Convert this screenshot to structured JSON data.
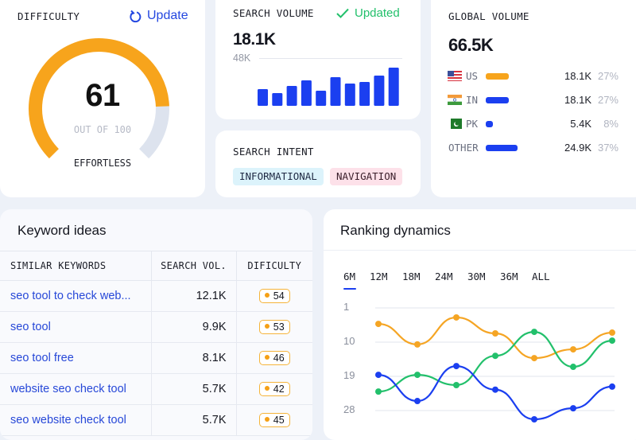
{
  "difficulty": {
    "title": "DIFFICULTY",
    "update_label": "Update",
    "value": "61",
    "max_label": "OUT OF 100",
    "level": "EFFORTLESS",
    "fraction": 0.61,
    "colors": {
      "fill": "#f7a41c",
      "track": "#dde3ee"
    }
  },
  "search_volume": {
    "title": "SEARCH VOLUME",
    "status": "Updated",
    "value": "18.1K",
    "scale_label": "48K",
    "bars": [
      16.8,
      12.8,
      20,
      25.6,
      15.2,
      28.8,
      22.4,
      24,
      30.4,
      38.4
    ],
    "scale_max": 48,
    "color": "#1b3ff0"
  },
  "search_intent": {
    "title": "SEARCH INTENT",
    "tags": [
      "INFORMATIONAL",
      "NAVIGATION"
    ]
  },
  "global_volume": {
    "title": "GLOBAL VOLUME",
    "value": "66.5K",
    "rows": [
      {
        "code": "US",
        "flag": "us-flag",
        "value": "18.1K",
        "pct": "27%",
        "share": 27,
        "color": "#f7a41c"
      },
      {
        "code": "IN",
        "flag": "in-flag",
        "value": "18.1K",
        "pct": "27%",
        "share": 27,
        "color": "#1b3ff0"
      },
      {
        "code": "PK",
        "flag": "pk-flag",
        "value": "5.4K",
        "pct": "8%",
        "share": 8,
        "color": "#1b3ff0"
      },
      {
        "code": "OTHER",
        "flag": "",
        "value": "24.9K",
        "pct": "37%",
        "share": 37,
        "color": "#1b3ff0"
      }
    ]
  },
  "keyword_ideas": {
    "title": "Keyword ideas",
    "columns": [
      "SIMILAR KEYWORDS",
      "SEARCH VOL.",
      "DIFICULTY"
    ],
    "rows": [
      {
        "keyword": "seo tool to check web...",
        "volume": "12.1K",
        "difficulty": "54"
      },
      {
        "keyword": "seo tool",
        "volume": "9.9K",
        "difficulty": "53"
      },
      {
        "keyword": "seo tool free",
        "volume": "8.1K",
        "difficulty": "46"
      },
      {
        "keyword": "website seo check tool",
        "volume": "5.7K",
        "difficulty": "42"
      },
      {
        "keyword": "seo website check tool",
        "volume": "5.7K",
        "difficulty": "45"
      }
    ]
  },
  "ranking": {
    "title": "Ranking dynamics",
    "tabs": [
      "6M",
      "12M",
      "18M",
      "24M",
      "30M",
      "36M",
      "ALL"
    ],
    "active_tab": "6M"
  },
  "chart_data": {
    "type": "line",
    "y_ticks": [
      "1",
      "10",
      "19",
      "28"
    ],
    "ylim": [
      1,
      28
    ],
    "y_inverted": true,
    "grid": true,
    "series": [
      {
        "color": "#f5a524",
        "values": [
          5.2,
          10.6,
          3.5,
          7.7,
          14.2,
          11.9,
          7.5
        ]
      },
      {
        "color": "#22c06b",
        "values": [
          23,
          18.6,
          21.3,
          13.6,
          7.3,
          16.5,
          9.6
        ]
      },
      {
        "color": "#1b3ff0",
        "values": [
          18.6,
          25.5,
          16.3,
          22.5,
          30.3,
          27.4,
          21.7
        ]
      }
    ]
  }
}
